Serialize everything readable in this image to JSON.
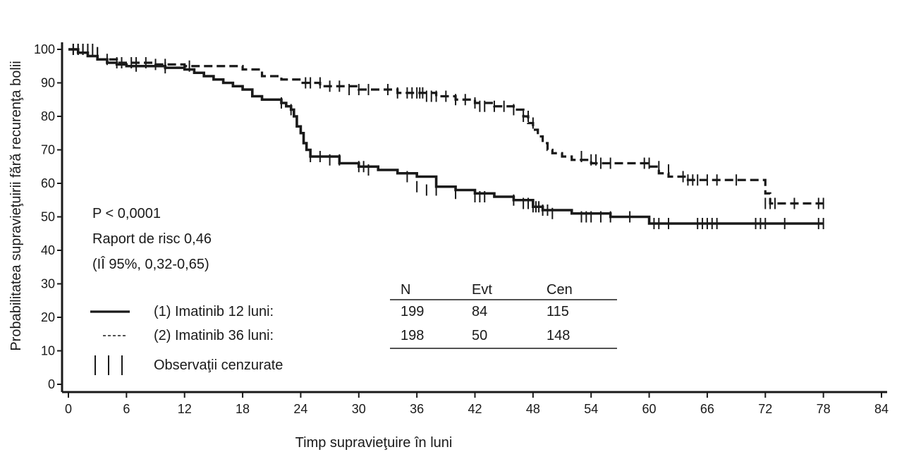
{
  "chart_data": {
    "type": "line",
    "subtype": "kaplan-meier",
    "title": "",
    "xlabel": "Timp supravieţuire în luni",
    "ylabel": "Probabilitatea supravieţuirii fără recurenţa bolii",
    "xlim": [
      0,
      84
    ],
    "ylim": [
      0,
      100
    ],
    "x_ticks": [
      0,
      6,
      12,
      18,
      24,
      30,
      36,
      42,
      48,
      54,
      60,
      66,
      72,
      78,
      84
    ],
    "y_ticks": [
      0,
      10,
      20,
      30,
      40,
      50,
      60,
      70,
      80,
      90,
      100
    ],
    "grid": false,
    "series": [
      {
        "name": "(1) Imatinib 12 luni:",
        "style": "solid",
        "color": "#1a1a1a",
        "x": [
          0,
          1,
          2,
          3,
          4,
          5,
          6,
          8,
          10,
          12,
          13,
          14,
          15,
          16,
          17,
          18,
          19,
          20,
          21,
          22,
          22.5,
          23,
          23.3,
          23.6,
          24,
          24.3,
          24.6,
          25,
          26,
          28,
          30,
          32,
          34,
          36,
          38,
          40,
          42,
          44,
          46,
          47,
          48,
          49,
          52,
          56,
          59.5,
          60,
          62,
          70,
          78
        ],
        "y": [
          100,
          99,
          98,
          97,
          96,
          95.5,
          95,
          95,
          94.5,
          94,
          93,
          92,
          91,
          90,
          89,
          88,
          86,
          85,
          85,
          84,
          83,
          82,
          80,
          77,
          75,
          72,
          70,
          68,
          68,
          66,
          65,
          64,
          63,
          62,
          59,
          58,
          57,
          56,
          55,
          55,
          53,
          52,
          51,
          50,
          50,
          48,
          48,
          48,
          48
        ],
        "censor_x": [
          0.5,
          1,
          1.5,
          2,
          2.5,
          3,
          5,
          7,
          10,
          22,
          23,
          25,
          26,
          27,
          28,
          30,
          30.5,
          31,
          35,
          36,
          37,
          38,
          40,
          42,
          42.5,
          43,
          46,
          47,
          47.5,
          48,
          48.3,
          48.6,
          49,
          49.5,
          50,
          53,
          53.5,
          54,
          55,
          56,
          58,
          60.5,
          61,
          62,
          65,
          65.5,
          66,
          66.5,
          67,
          71,
          71.5,
          72,
          74,
          77.5,
          78
        ],
        "censor_y": [
          100,
          100,
          100,
          100,
          100,
          99,
          96,
          95,
          94.5,
          84,
          82,
          68,
          68,
          67,
          67,
          65,
          65,
          64,
          62,
          59,
          58,
          58,
          57,
          56,
          56,
          56,
          55,
          54,
          54,
          53,
          53,
          53,
          52,
          52,
          51,
          50,
          50,
          50,
          50,
          50,
          50,
          48,
          48,
          48,
          48,
          48,
          48,
          48,
          48,
          48,
          48,
          48,
          48,
          48,
          48
        ]
      },
      {
        "name": "(2) Imatinib 36 luni:",
        "style": "dashed",
        "color": "#1a1a1a",
        "x": [
          0,
          1,
          2,
          3,
          4,
          5,
          6,
          9,
          12,
          18,
          20,
          22,
          24,
          26,
          28,
          30,
          32,
          34,
          36,
          38,
          40,
          42,
          44,
          46,
          47,
          47.5,
          48,
          48.5,
          49,
          49.5,
          50,
          51,
          52,
          54,
          56,
          58,
          60,
          61,
          62,
          64,
          66,
          68,
          70,
          72,
          72.5,
          73,
          78
        ],
        "y": [
          100,
          99,
          98,
          97,
          97,
          96,
          96,
          95.5,
          95,
          94,
          92,
          91,
          90,
          89,
          89,
          88,
          88,
          87,
          87,
          86,
          85,
          84,
          83,
          82,
          80,
          78,
          76,
          74,
          72,
          70,
          69,
          68,
          67,
          66,
          66,
          66,
          65,
          63,
          62,
          61,
          61,
          61,
          61,
          57,
          54,
          54,
          54
        ],
        "censor_x": [
          0.5,
          1,
          1.5,
          2,
          3,
          4,
          5.5,
          6.5,
          7,
          8,
          9,
          10,
          12.5,
          24.5,
          25,
          26,
          27,
          28,
          29,
          30,
          31,
          33,
          34,
          35,
          35.5,
          36,
          36.3,
          36.6,
          37,
          37.5,
          38,
          39,
          40,
          41,
          42,
          42.5,
          43,
          44,
          45,
          46,
          47,
          47.5,
          48,
          53,
          54,
          54.5,
          55,
          56,
          59.5,
          60,
          61,
          62,
          63.5,
          64,
          64.5,
          65,
          66,
          67,
          69,
          72,
          72.5,
          73,
          75,
          77.5,
          78
        ],
        "censor_y": [
          100,
          100,
          100,
          100,
          99,
          97,
          96,
          96,
          96,
          96,
          95.5,
          95.5,
          95,
          90,
          90,
          90,
          89,
          89,
          88,
          88,
          88,
          88,
          87,
          87,
          87,
          87,
          87,
          87,
          86,
          86,
          86,
          86,
          85,
          85,
          84,
          83,
          83,
          83,
          83,
          82,
          80,
          80,
          78,
          68,
          67,
          67,
          66,
          66,
          66,
          66,
          65,
          64,
          62,
          61,
          61,
          61,
          61,
          61,
          61,
          54,
          54,
          54,
          54,
          54,
          54
        ]
      }
    ],
    "annotations": {
      "p_value": "P < 0,0001",
      "hazard_ratio": "Raport de risc 0,46",
      "ci": "(IÎ 95%, 0,32-0,65)"
    },
    "legend_table": {
      "headers": [
        "N",
        "Evt",
        "Cen"
      ],
      "rows": [
        {
          "label": "(1) Imatinib 12 luni:",
          "symbol": "——",
          "values": [
            "199",
            "84",
            "115"
          ]
        },
        {
          "label": "(2) Imatinib 36 luni:",
          "symbol": "-----",
          "values": [
            "198",
            "50",
            "148"
          ]
        }
      ],
      "censor_row": {
        "symbol": "│ │ │",
        "label": "Observaţii cenzurate"
      }
    }
  }
}
